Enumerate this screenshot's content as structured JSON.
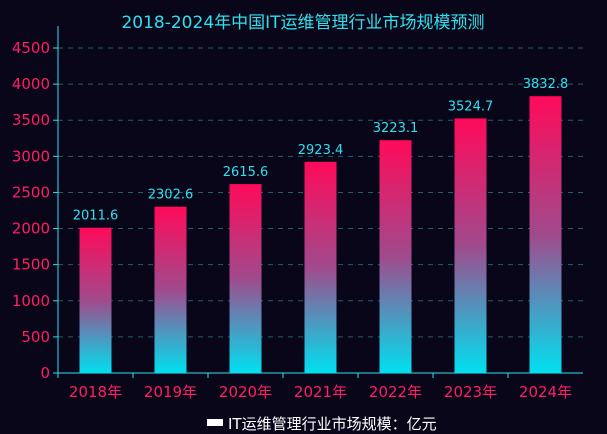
{
  "chart_data": {
    "type": "bar",
    "title": "2018-2024年中国IT运维管理行业市场规模预测",
    "categories": [
      "2018年",
      "2019年",
      "2020年",
      "2021年",
      "2022年",
      "2023年",
      "2024年"
    ],
    "series": [
      {
        "name": "IT运维管理行业市场规模：亿元",
        "values": [
          2011.6,
          2302.6,
          2615.6,
          2923.4,
          3223.1,
          3524.7,
          3832.8
        ]
      }
    ],
    "ylim": [
      0,
      4500
    ],
    "yticks": [
      0,
      500,
      1000,
      1500,
      2000,
      2500,
      3000,
      3500,
      4000,
      4500
    ],
    "grid": true,
    "legend_position": "bottom",
    "colors": {
      "background": "#0a0619",
      "bar_top": "#ff0a5a",
      "bar_mid": "#a04a8c",
      "bar_bottom": "#00e0f0",
      "tick_text": "#ff1e63",
      "value_text": "#2fe0ee",
      "title_text": "#2fe0ee",
      "grid": "#1f6070",
      "axis": "#2fe0ee",
      "legend_text": "#ffffff"
    }
  }
}
